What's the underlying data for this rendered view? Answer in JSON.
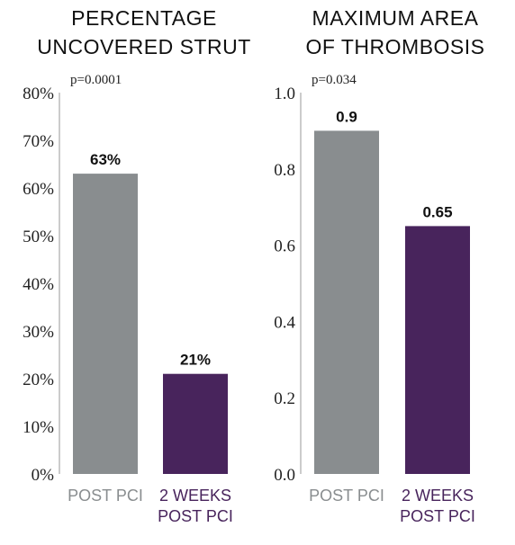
{
  "chart_data": [
    {
      "type": "bar",
      "title_lines": [
        "PERCENTAGE",
        "UNCOVERED STRUT"
      ],
      "annotation": "p=0.0001",
      "categories": [
        "POST PCI",
        "2 WEEKS POST PCI"
      ],
      "category_lines": [
        [
          "POST PCI"
        ],
        [
          "2 WEEKS",
          "POST PCI"
        ]
      ],
      "values": [
        63,
        21
      ],
      "data_labels": [
        "63%",
        "21%"
      ],
      "ylim": [
        0,
        80
      ],
      "yticks": [
        0,
        10,
        20,
        30,
        40,
        50,
        60,
        70,
        80
      ],
      "ytick_labels": [
        "0%",
        "10%",
        "20%",
        "30%",
        "40%",
        "50%",
        "60%",
        "70%",
        "80%"
      ],
      "grid": false
    },
    {
      "type": "bar",
      "title_lines": [
        "MAXIMUM AREA",
        "OF THROMBOSIS"
      ],
      "annotation": "p=0.034",
      "categories": [
        "POST PCI",
        "2 WEEKS POST PCI"
      ],
      "category_lines": [
        [
          "POST PCI"
        ],
        [
          "2 WEEKS",
          "POST PCI"
        ]
      ],
      "values": [
        0.9,
        0.65
      ],
      "data_labels": [
        "0.9",
        "0.65"
      ],
      "ylim": [
        0,
        1.0
      ],
      "yticks": [
        0,
        0.2,
        0.4,
        0.6,
        0.8,
        1.0
      ],
      "ytick_labels": [
        "0.0",
        "0.2",
        "0.4",
        "0.6",
        "0.8",
        "1.0"
      ],
      "grid": false
    }
  ],
  "colors": {
    "post_pci": "#898d8f",
    "two_weeks": "#48245c",
    "post_pci_label": "#898d8f",
    "two_weeks_label": "#48245c"
  }
}
